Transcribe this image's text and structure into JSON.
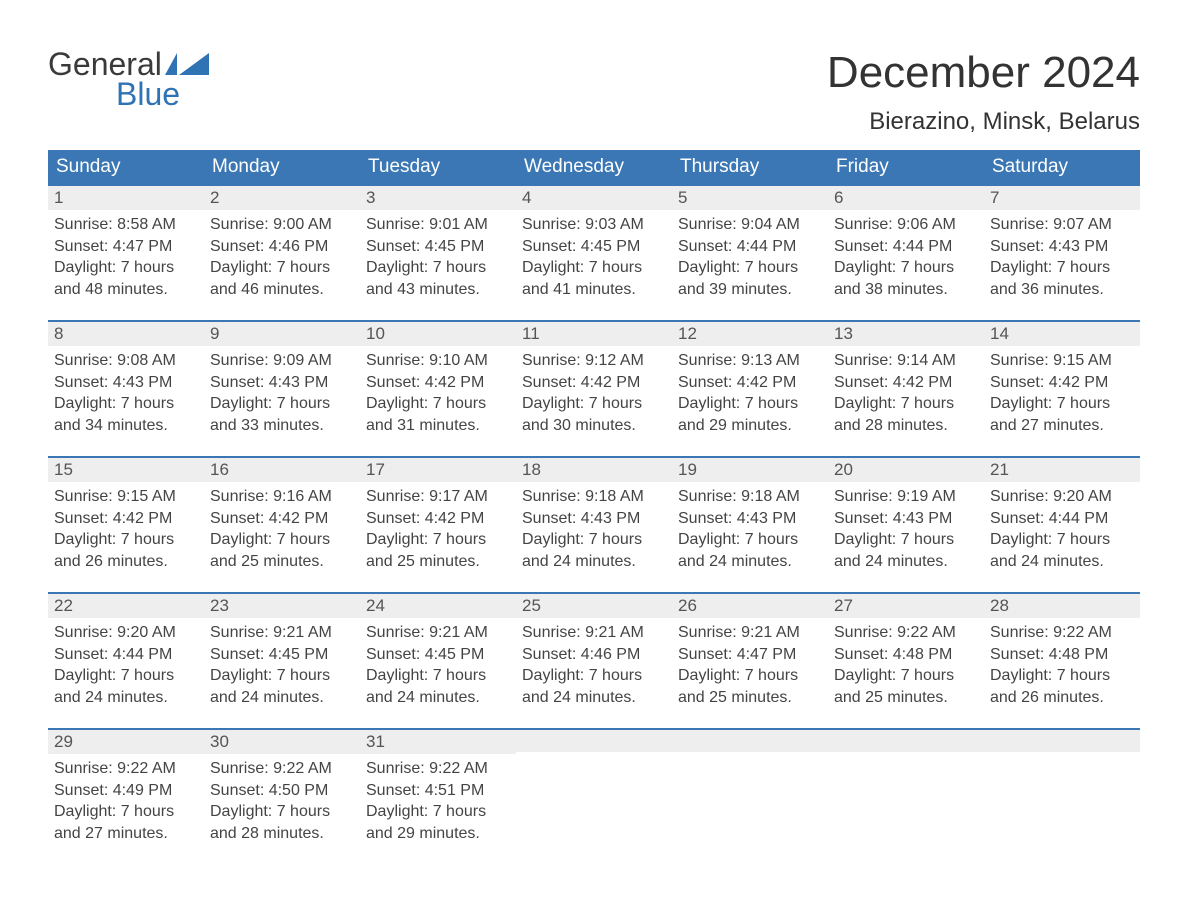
{
  "logo": {
    "word1": "General",
    "word2": "Blue",
    "brand_color": "#2f73b5"
  },
  "title": "December 2024",
  "location": "Bierazino, Minsk, Belarus",
  "colors": {
    "header_bg": "#3a77b4",
    "header_text": "#ffffff",
    "daynum_bg": "#eeeeee",
    "week_border": "#3a77b4",
    "page_bg": "#ffffff",
    "body_text": "#444444"
  },
  "weekdays": [
    "Sunday",
    "Monday",
    "Tuesday",
    "Wednesday",
    "Thursday",
    "Friday",
    "Saturday"
  ],
  "weeks": [
    [
      {
        "date": "1",
        "sunrise": "Sunrise: 8:58 AM",
        "sunset": "Sunset: 4:47 PM",
        "daylight1": "Daylight: 7 hours",
        "daylight2": "and 48 minutes."
      },
      {
        "date": "2",
        "sunrise": "Sunrise: 9:00 AM",
        "sunset": "Sunset: 4:46 PM",
        "daylight1": "Daylight: 7 hours",
        "daylight2": "and 46 minutes."
      },
      {
        "date": "3",
        "sunrise": "Sunrise: 9:01 AM",
        "sunset": "Sunset: 4:45 PM",
        "daylight1": "Daylight: 7 hours",
        "daylight2": "and 43 minutes."
      },
      {
        "date": "4",
        "sunrise": "Sunrise: 9:03 AM",
        "sunset": "Sunset: 4:45 PM",
        "daylight1": "Daylight: 7 hours",
        "daylight2": "and 41 minutes."
      },
      {
        "date": "5",
        "sunrise": "Sunrise: 9:04 AM",
        "sunset": "Sunset: 4:44 PM",
        "daylight1": "Daylight: 7 hours",
        "daylight2": "and 39 minutes."
      },
      {
        "date": "6",
        "sunrise": "Sunrise: 9:06 AM",
        "sunset": "Sunset: 4:44 PM",
        "daylight1": "Daylight: 7 hours",
        "daylight2": "and 38 minutes."
      },
      {
        "date": "7",
        "sunrise": "Sunrise: 9:07 AM",
        "sunset": "Sunset: 4:43 PM",
        "daylight1": "Daylight: 7 hours",
        "daylight2": "and 36 minutes."
      }
    ],
    [
      {
        "date": "8",
        "sunrise": "Sunrise: 9:08 AM",
        "sunset": "Sunset: 4:43 PM",
        "daylight1": "Daylight: 7 hours",
        "daylight2": "and 34 minutes."
      },
      {
        "date": "9",
        "sunrise": "Sunrise: 9:09 AM",
        "sunset": "Sunset: 4:43 PM",
        "daylight1": "Daylight: 7 hours",
        "daylight2": "and 33 minutes."
      },
      {
        "date": "10",
        "sunrise": "Sunrise: 9:10 AM",
        "sunset": "Sunset: 4:42 PM",
        "daylight1": "Daylight: 7 hours",
        "daylight2": "and 31 minutes."
      },
      {
        "date": "11",
        "sunrise": "Sunrise: 9:12 AM",
        "sunset": "Sunset: 4:42 PM",
        "daylight1": "Daylight: 7 hours",
        "daylight2": "and 30 minutes."
      },
      {
        "date": "12",
        "sunrise": "Sunrise: 9:13 AM",
        "sunset": "Sunset: 4:42 PM",
        "daylight1": "Daylight: 7 hours",
        "daylight2": "and 29 minutes."
      },
      {
        "date": "13",
        "sunrise": "Sunrise: 9:14 AM",
        "sunset": "Sunset: 4:42 PM",
        "daylight1": "Daylight: 7 hours",
        "daylight2": "and 28 minutes."
      },
      {
        "date": "14",
        "sunrise": "Sunrise: 9:15 AM",
        "sunset": "Sunset: 4:42 PM",
        "daylight1": "Daylight: 7 hours",
        "daylight2": "and 27 minutes."
      }
    ],
    [
      {
        "date": "15",
        "sunrise": "Sunrise: 9:15 AM",
        "sunset": "Sunset: 4:42 PM",
        "daylight1": "Daylight: 7 hours",
        "daylight2": "and 26 minutes."
      },
      {
        "date": "16",
        "sunrise": "Sunrise: 9:16 AM",
        "sunset": "Sunset: 4:42 PM",
        "daylight1": "Daylight: 7 hours",
        "daylight2": "and 25 minutes."
      },
      {
        "date": "17",
        "sunrise": "Sunrise: 9:17 AM",
        "sunset": "Sunset: 4:42 PM",
        "daylight1": "Daylight: 7 hours",
        "daylight2": "and 25 minutes."
      },
      {
        "date": "18",
        "sunrise": "Sunrise: 9:18 AM",
        "sunset": "Sunset: 4:43 PM",
        "daylight1": "Daylight: 7 hours",
        "daylight2": "and 24 minutes."
      },
      {
        "date": "19",
        "sunrise": "Sunrise: 9:18 AM",
        "sunset": "Sunset: 4:43 PM",
        "daylight1": "Daylight: 7 hours",
        "daylight2": "and 24 minutes."
      },
      {
        "date": "20",
        "sunrise": "Sunrise: 9:19 AM",
        "sunset": "Sunset: 4:43 PM",
        "daylight1": "Daylight: 7 hours",
        "daylight2": "and 24 minutes."
      },
      {
        "date": "21",
        "sunrise": "Sunrise: 9:20 AM",
        "sunset": "Sunset: 4:44 PM",
        "daylight1": "Daylight: 7 hours",
        "daylight2": "and 24 minutes."
      }
    ],
    [
      {
        "date": "22",
        "sunrise": "Sunrise: 9:20 AM",
        "sunset": "Sunset: 4:44 PM",
        "daylight1": "Daylight: 7 hours",
        "daylight2": "and 24 minutes."
      },
      {
        "date": "23",
        "sunrise": "Sunrise: 9:21 AM",
        "sunset": "Sunset: 4:45 PM",
        "daylight1": "Daylight: 7 hours",
        "daylight2": "and 24 minutes."
      },
      {
        "date": "24",
        "sunrise": "Sunrise: 9:21 AM",
        "sunset": "Sunset: 4:45 PM",
        "daylight1": "Daylight: 7 hours",
        "daylight2": "and 24 minutes."
      },
      {
        "date": "25",
        "sunrise": "Sunrise: 9:21 AM",
        "sunset": "Sunset: 4:46 PM",
        "daylight1": "Daylight: 7 hours",
        "daylight2": "and 24 minutes."
      },
      {
        "date": "26",
        "sunrise": "Sunrise: 9:21 AM",
        "sunset": "Sunset: 4:47 PM",
        "daylight1": "Daylight: 7 hours",
        "daylight2": "and 25 minutes."
      },
      {
        "date": "27",
        "sunrise": "Sunrise: 9:22 AM",
        "sunset": "Sunset: 4:48 PM",
        "daylight1": "Daylight: 7 hours",
        "daylight2": "and 25 minutes."
      },
      {
        "date": "28",
        "sunrise": "Sunrise: 9:22 AM",
        "sunset": "Sunset: 4:48 PM",
        "daylight1": "Daylight: 7 hours",
        "daylight2": "and 26 minutes."
      }
    ],
    [
      {
        "date": "29",
        "sunrise": "Sunrise: 9:22 AM",
        "sunset": "Sunset: 4:49 PM",
        "daylight1": "Daylight: 7 hours",
        "daylight2": "and 27 minutes."
      },
      {
        "date": "30",
        "sunrise": "Sunrise: 9:22 AM",
        "sunset": "Sunset: 4:50 PM",
        "daylight1": "Daylight: 7 hours",
        "daylight2": "and 28 minutes."
      },
      {
        "date": "31",
        "sunrise": "Sunrise: 9:22 AM",
        "sunset": "Sunset: 4:51 PM",
        "daylight1": "Daylight: 7 hours",
        "daylight2": "and 29 minutes."
      },
      null,
      null,
      null,
      null
    ]
  ]
}
